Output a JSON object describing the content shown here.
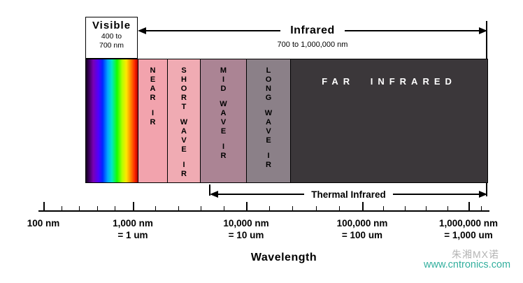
{
  "visible": {
    "label": "Visible",
    "range_line1": "400 to",
    "range_line2": "700 nm"
  },
  "infrared": {
    "label": "Infrared",
    "range": "700 to 1,000,000 nm"
  },
  "bands": [
    {
      "name": "visible-spectrum",
      "label": ""
    },
    {
      "name": "near-ir",
      "label": "NEAR IR",
      "color": "#f2a3ad"
    },
    {
      "name": "short-wave-ir",
      "label": "SHORT WAVE IR",
      "color": "#f0abb3"
    },
    {
      "name": "mid-wave-ir",
      "label": "MID WAVE IR",
      "color": "#ab8494"
    },
    {
      "name": "long-wave-ir",
      "label": "LONG WAVE IR",
      "color": "#8b8088"
    },
    {
      "name": "far-infrared",
      "label": "FAR INFRARED",
      "color": "#3b373a",
      "text_color": "#ffffff"
    }
  ],
  "thermal": {
    "label": "Thermal Infrared"
  },
  "axis": {
    "label": "Wavelength",
    "ticks": [
      {
        "nm": "100 nm",
        "um": ""
      },
      {
        "nm": "1,000 nm",
        "um": "= 1 um"
      },
      {
        "nm": "10,000 nm",
        "um": "= 10 um"
      },
      {
        "nm": "100,000 nm",
        "um": "= 100 um"
      },
      {
        "nm": "1,000,000 nm",
        "um": "= 1,000 um"
      }
    ]
  },
  "watermark": {
    "text_cn": "朱湘MX诺",
    "url": "www.cntronics.com",
    "url_color": "#33af9e"
  }
}
